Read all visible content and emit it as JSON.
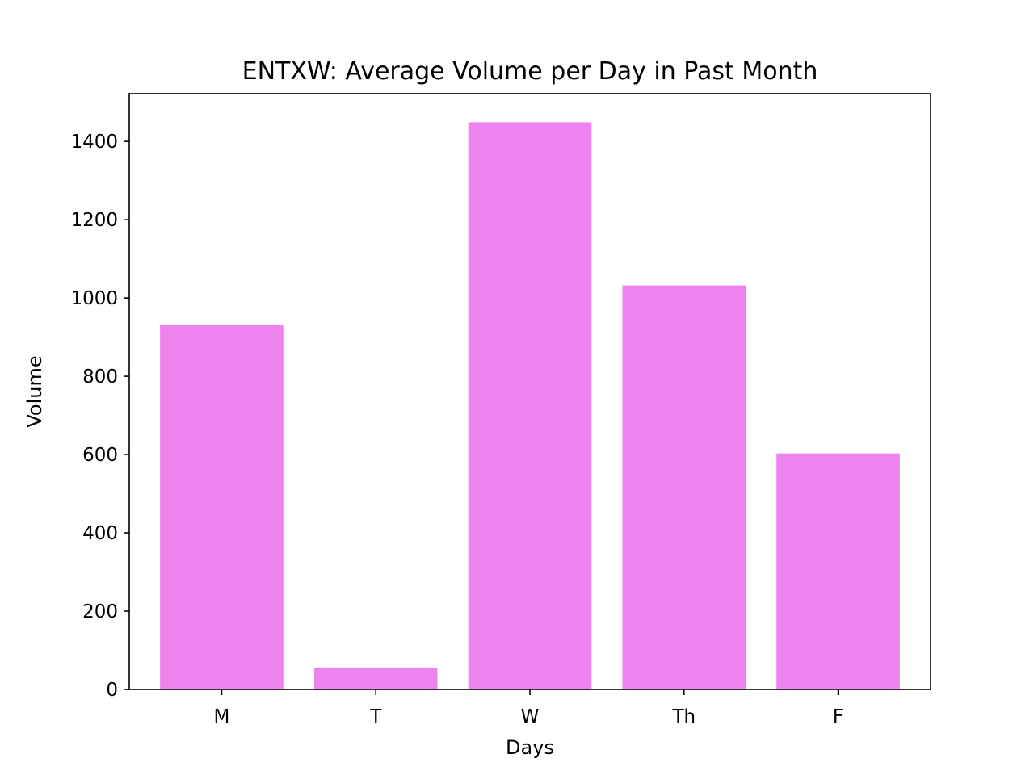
{
  "chart_data": {
    "type": "bar",
    "title": "ENTXW: Average Volume per Day in Past Month",
    "xlabel": "Days",
    "ylabel": "Volume",
    "categories": [
      "M",
      "T",
      "W",
      "Th",
      "F"
    ],
    "values": [
      931,
      55,
      1449,
      1032,
      603
    ],
    "ylim": [
      0,
      1522
    ],
    "yticks": [
      0,
      200,
      400,
      600,
      800,
      1000,
      1200,
      1400
    ],
    "bar_color": "#ee82ee",
    "grid": false,
    "legend": "none"
  }
}
